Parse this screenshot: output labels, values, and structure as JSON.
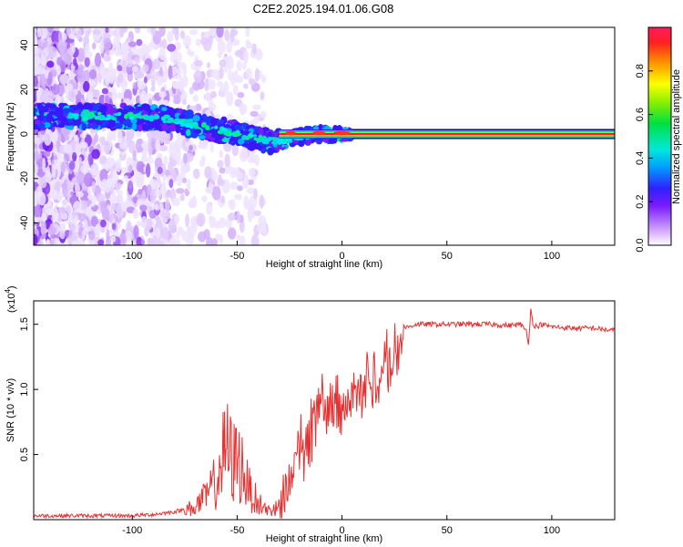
{
  "title": "C2E2.2025.194.01.06.G08",
  "colors": {
    "snr_line": "#e83030",
    "frequency_band_core": "#e8203a",
    "background": "#ffffff"
  },
  "chart_data": [
    {
      "type": "heatmap",
      "xlabel": "Height of straight line (km)",
      "ylabel": "Frequency (Hz)",
      "xlim": [
        -147,
        130
      ],
      "ylim": [
        -50,
        48
      ],
      "x_ticks": [
        -100,
        -50,
        0,
        50,
        100
      ],
      "x_tick_labels": [
        "-100",
        "-50",
        "0",
        "50",
        "100"
      ],
      "y_ticks": [
        -40,
        -20,
        0,
        20,
        40
      ],
      "y_tick_labels": [
        "-40",
        "-20",
        "0",
        "20",
        "40"
      ],
      "colorbar": {
        "label": "Normalized spectral amplitude",
        "range": [
          0,
          1
        ],
        "ticks": [
          0,
          0.2,
          0.4,
          0.6,
          0.8
        ],
        "tick_labels": [
          "0.0",
          "0.2",
          "0.4",
          "0.6",
          "0.8"
        ]
      },
      "ridge": {
        "x": [
          -147,
          -120,
          -100,
          -85,
          -75,
          -65,
          -55,
          -45,
          -35,
          -28,
          -20,
          -10,
          0,
          5,
          10,
          130
        ],
        "frequency": [
          8,
          8,
          8,
          7,
          5,
          3,
          1,
          -1,
          -3,
          -3,
          -1,
          0,
          0,
          0,
          0,
          0
        ]
      },
      "grid": false
    },
    {
      "type": "line",
      "xlabel": "Height of straight line (km)",
      "ylabel": "SNR (10 * v/v)",
      "scale_label": "(x10",
      "scale_exponent": "4",
      "xlim": [
        -147,
        130
      ],
      "ylim": [
        0,
        1.68
      ],
      "x_ticks": [
        -100,
        -50,
        0,
        50,
        100
      ],
      "x_tick_labels": [
        "-100",
        "-50",
        "0",
        "50",
        "100"
      ],
      "y_ticks": [
        0.5,
        1.0,
        1.5
      ],
      "y_tick_labels": [
        "0.5",
        "1.0",
        "1.5"
      ],
      "series": [
        {
          "x": [
            -147,
            -120,
            -100,
            -90,
            -80,
            -75,
            -70,
            -65,
            -60,
            -57,
            -55,
            -52,
            -50,
            -47,
            -45,
            -40,
            -35,
            -30,
            -28,
            -25,
            -22,
            -20,
            -18,
            -15,
            -12,
            -10,
            -8,
            -5,
            -2,
            0,
            3,
            5,
            8,
            10,
            13,
            15,
            18,
            20,
            23,
            25,
            28,
            30,
            35,
            40,
            50,
            60,
            70,
            80,
            85,
            88,
            89,
            90,
            91,
            93,
            95,
            100,
            110,
            120,
            130
          ],
          "y": [
            0.03,
            0.03,
            0.03,
            0.04,
            0.06,
            0.08,
            0.12,
            0.2,
            0.35,
            0.55,
            0.65,
            0.5,
            0.55,
            0.45,
            0.3,
            0.15,
            0.08,
            0.12,
            0.3,
            0.55,
            0.65,
            0.75,
            0.7,
            0.8,
            0.95,
            1.1,
            0.9,
            1.0,
            1.1,
            1.0,
            1.05,
            1.1,
            1.15,
            1.2,
            1.25,
            1.2,
            1.3,
            1.35,
            1.4,
            1.45,
            1.45,
            1.47,
            1.5,
            1.5,
            1.5,
            1.5,
            1.5,
            1.49,
            1.5,
            1.45,
            1.35,
            1.62,
            1.5,
            1.48,
            1.5,
            1.48,
            1.47,
            1.47,
            1.45
          ]
        }
      ],
      "grid": false
    }
  ]
}
